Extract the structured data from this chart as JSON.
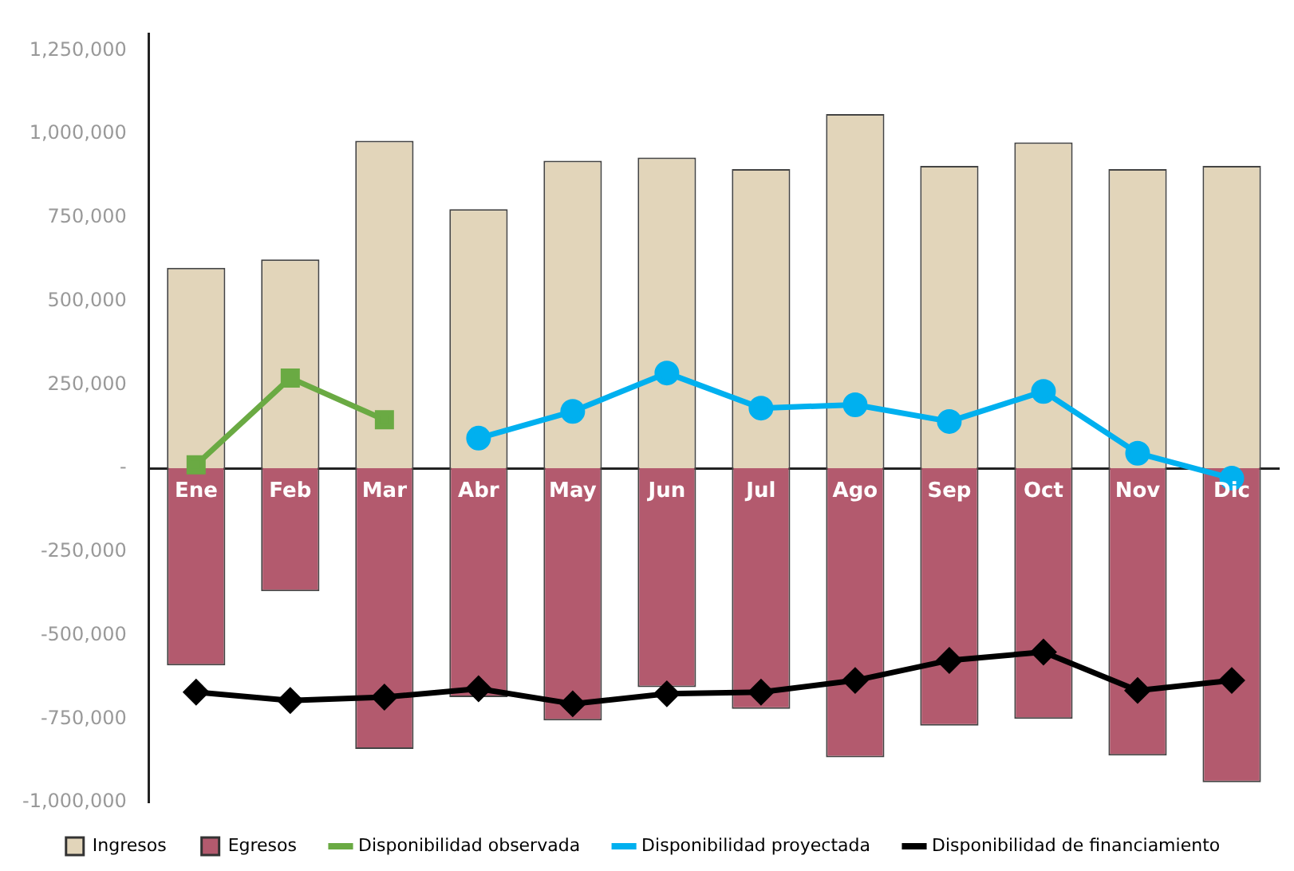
{
  "chart_data": {
    "type": "bar",
    "stacked": true,
    "categories": [
      "Ene",
      "Feb",
      "Mar",
      "Abr",
      "May",
      "Jun",
      "Jul",
      "Ago",
      "Sep",
      "Oct",
      "Nov",
      "Dic"
    ],
    "ylim": [
      -1000000,
      1300000
    ],
    "yticks": [
      {
        "value": -1000000,
        "label": "-1,000,000"
      },
      {
        "value": -750000,
        "label": "-750,000"
      },
      {
        "value": -500000,
        "label": "-500,000"
      },
      {
        "value": -250000,
        "label": "-250,000"
      },
      {
        "value": 0,
        "label": "-"
      },
      {
        "value": 250000,
        "label": "250,000"
      },
      {
        "value": 500000,
        "label": "500,000"
      },
      {
        "value": 750000,
        "label": "750,000"
      },
      {
        "value": 1000000,
        "label": "1,000,000"
      },
      {
        "value": 1250000,
        "label": "1,250,000"
      }
    ],
    "grid": false,
    "legend": "bottom",
    "series": [
      {
        "name": "Ingresos",
        "color": "#e2d5ba",
        "values": [
          600000,
          625000,
          980000,
          775000,
          920000,
          930000,
          895000,
          1060000,
          905000,
          975000,
          895000,
          905000
        ]
      },
      {
        "name": "Egresos",
        "color": "#b35a6e",
        "values": [
          -590000,
          -368000,
          -840000,
          -685000,
          -755000,
          -655000,
          -720000,
          -865000,
          -770000,
          -750000,
          -860000,
          -940000
        ]
      },
      {
        "name": "Disponibilidad observada",
        "type": "line",
        "color": "#6aaa43",
        "marker": "square",
        "values": [
          10000,
          270000,
          145000,
          null,
          null,
          null,
          null,
          null,
          null,
          null,
          null,
          null
        ]
      },
      {
        "name": "Disponibilidad proyectada",
        "type": "line",
        "color": "#00b0ef",
        "marker": "circle",
        "values": [
          null,
          null,
          null,
          90000,
          170000,
          285000,
          180000,
          190000,
          140000,
          230000,
          45000,
          -30000
        ]
      },
      {
        "name": "Disponibilidad de financiamiento",
        "type": "line",
        "color": "#000000",
        "marker": "diamond",
        "values": [
          -670000,
          -695000,
          -685000,
          -660000,
          -705000,
          -675000,
          -670000,
          -635000,
          -575000,
          -550000,
          -665000,
          -635000
        ]
      }
    ]
  }
}
